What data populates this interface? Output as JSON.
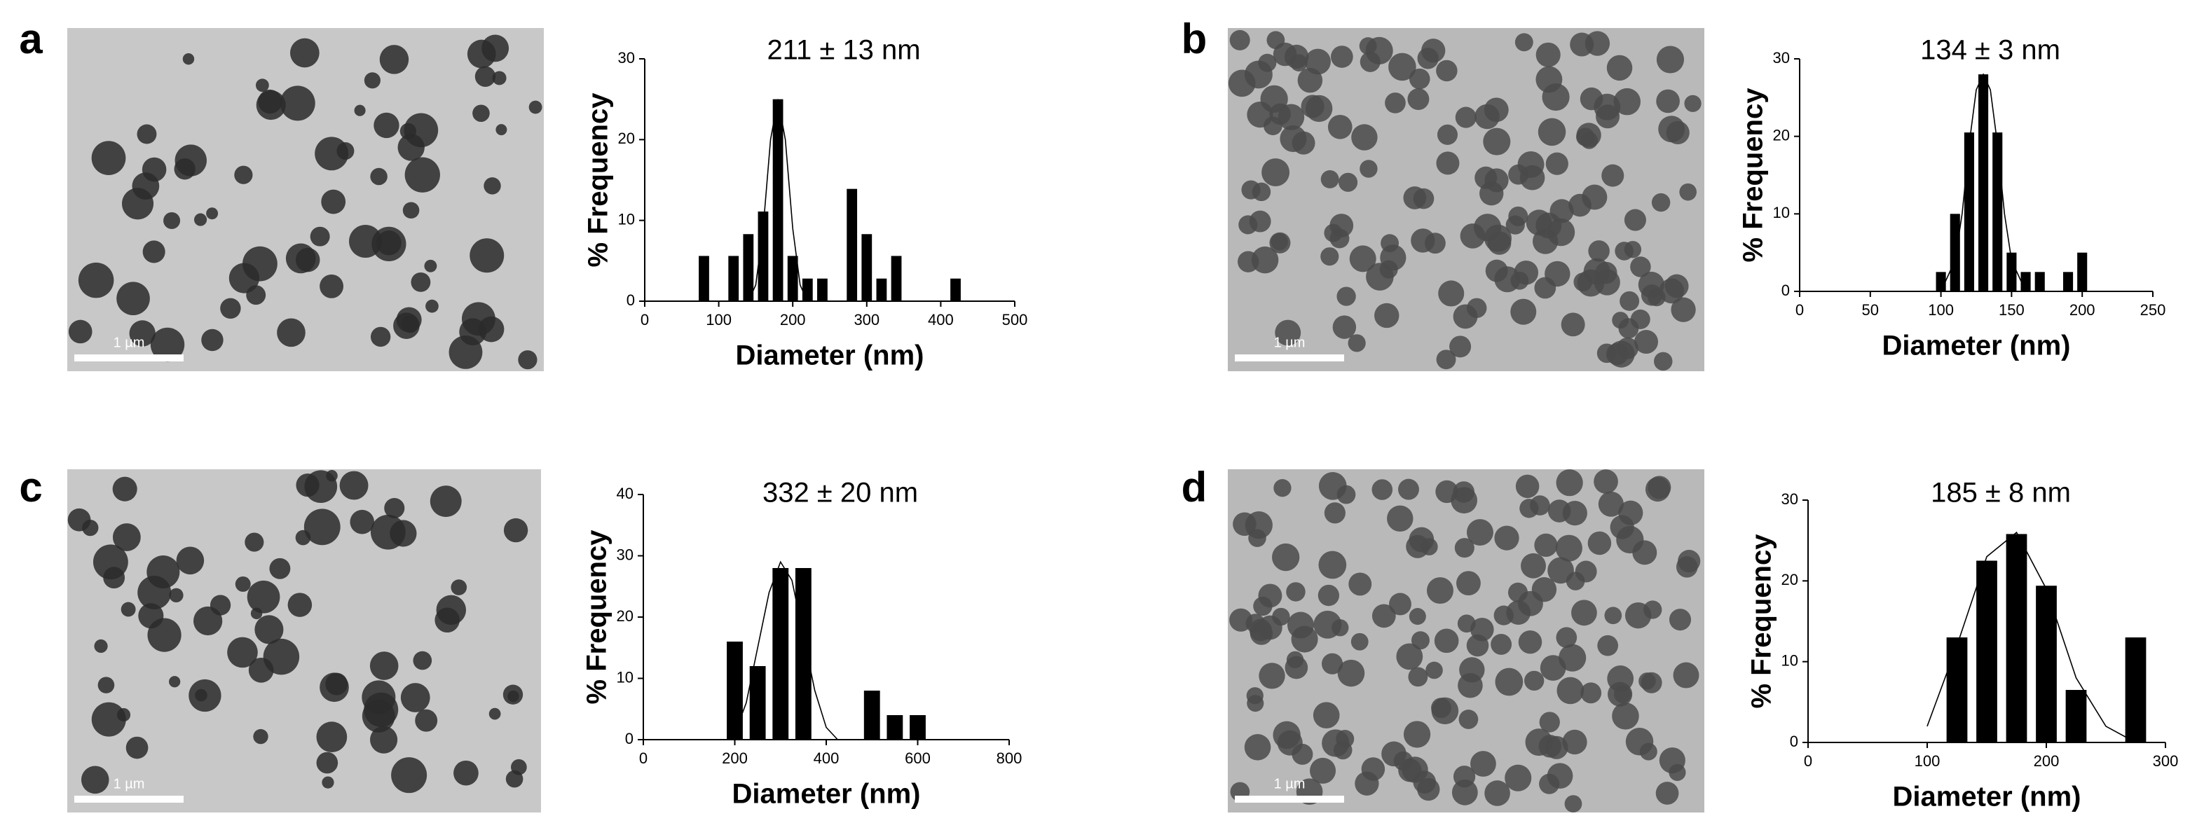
{
  "chart_data": [
    {
      "type": "bar",
      "panel_label": "a",
      "title": "211 ± 13 nm",
      "x_label": "Diameter (nm)",
      "y_label": "% Frequency",
      "image_scale_label": "1 µm",
      "color": "#000000",
      "x": [
        80,
        120,
        140,
        160,
        180,
        200,
        220,
        240,
        280,
        300,
        320,
        340,
        420
      ],
      "values": [
        5.6,
        5.6,
        8.3,
        11.1,
        25,
        5.6,
        2.8,
        2.8,
        13.9,
        8.3,
        2.8,
        5.6,
        2.8
      ],
      "fit": {
        "x": [
          140,
          150,
          160,
          170,
          180,
          190,
          200,
          210,
          220
        ],
        "values": [
          0,
          2,
          9,
          20,
          25,
          20,
          9,
          2,
          0
        ]
      },
      "xlim": [
        0,
        500
      ],
      "xticks": [
        0,
        100,
        200,
        300,
        400,
        500
      ],
      "ylim": [
        0,
        30
      ],
      "yticks": [
        0,
        10,
        20,
        30
      ]
    },
    {
      "type": "bar",
      "panel_label": "b",
      "title": "134 ± 3 nm",
      "x_label": "Diameter (nm)",
      "y_label": "% Frequency",
      "image_scale_label": "1 µm",
      "color": "#000000",
      "x": [
        100,
        110,
        120,
        130,
        140,
        150,
        160,
        170,
        190,
        200
      ],
      "values": [
        2.5,
        10,
        20.5,
        28,
        20.5,
        5,
        2.5,
        2.5,
        2.5,
        5
      ],
      "fit": {
        "x": [
          100,
          110,
          115,
          120,
          125,
          130,
          135,
          140,
          145,
          150,
          160
        ],
        "values": [
          0,
          4,
          10,
          19,
          26,
          28,
          26,
          19,
          10,
          4,
          0
        ]
      },
      "xlim": [
        0,
        250
      ],
      "xticks": [
        0,
        50,
        100,
        150,
        200,
        250
      ],
      "ylim": [
        0,
        30
      ],
      "yticks": [
        0,
        10,
        20,
        30
      ]
    },
    {
      "type": "bar",
      "panel_label": "c",
      "title": "332 ± 20 nm",
      "x_label": "Diameter (nm)",
      "y_label": "% Frequency",
      "image_scale_label": "1 µm",
      "color": "#000000",
      "x": [
        200,
        250,
        300,
        350,
        500,
        550,
        600
      ],
      "values": [
        16,
        12,
        28,
        28,
        8,
        4,
        4
      ],
      "fit": {
        "x": [
          200,
          225,
          250,
          275,
          300,
          325,
          350,
          375,
          400,
          425
        ],
        "values": [
          1,
          6,
          15,
          24,
          29,
          26,
          17,
          8,
          2,
          0
        ]
      },
      "xlim": [
        0,
        800
      ],
      "xticks": [
        0,
        200,
        400,
        600,
        800
      ],
      "ylim": [
        0,
        40
      ],
      "yticks": [
        0,
        10,
        20,
        30,
        40
      ]
    },
    {
      "type": "bar",
      "panel_label": "d",
      "title": "185 ± 8 nm",
      "x_label": "Diameter (nm)",
      "y_label": "% Frequency",
      "image_scale_label": "1 µm",
      "color": "#000000",
      "x": [
        125,
        150,
        175,
        200,
        225,
        275
      ],
      "values": [
        13,
        22.5,
        25.8,
        19.4,
        6.5,
        13
      ],
      "fit": {
        "x": [
          100,
          125,
          150,
          175,
          200,
          225,
          250,
          275
        ],
        "values": [
          2,
          12,
          23,
          26,
          19,
          8,
          2,
          0
        ]
      },
      "xlim": [
        0,
        300
      ],
      "xticks": [
        0,
        100,
        200,
        300
      ],
      "ylim": [
        0,
        30
      ],
      "yticks": [
        0,
        10,
        20,
        30
      ]
    }
  ]
}
